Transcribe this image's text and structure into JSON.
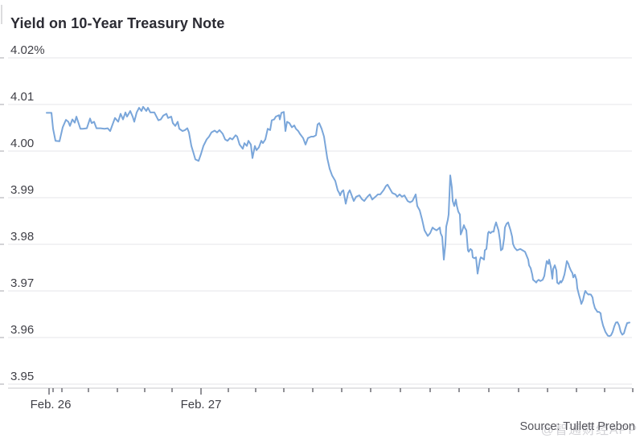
{
  "page": {
    "title": "Yield on 10-Year Treasury Note",
    "source": "Source: Tullett Prebon",
    "watermark": "@智通财经APP"
  },
  "colors": {
    "line": "#7aa6da",
    "grid": "#e6e6e8",
    "baseline": "#c9c9cc",
    "tick": "#4a4a52",
    "edge_tick": "#c4c4c8",
    "title": "#2b2b33",
    "label": "#3f3f46",
    "source": "#55555c",
    "watermark": "#d2d2d6"
  },
  "chart_data": {
    "type": "line",
    "title": "Yield on 10-Year Treasury Note",
    "unit": "%",
    "grid": true,
    "y_axis": {
      "range": [
        3.95,
        4.02
      ],
      "ticks": [
        {
          "label": "4.02%",
          "value": 4.02
        },
        {
          "label": "4.01",
          "value": 4.01
        },
        {
          "label": "4.00",
          "value": 4.0
        },
        {
          "label": "3.99",
          "value": 3.99
        },
        {
          "label": "3.98",
          "value": 3.98
        },
        {
          "label": "3.97",
          "value": 3.97
        },
        {
          "label": "3.96",
          "value": 3.96
        },
        {
          "label": "3.95",
          "value": 3.95
        }
      ]
    },
    "x_axis": {
      "labels": [
        {
          "text": "Feb. 26",
          "x": 63
        },
        {
          "text": "Feb. 27",
          "x": 250
        }
      ],
      "tick_positions": [
        61,
        66,
        77,
        110,
        146,
        180,
        214,
        250,
        284,
        318,
        353,
        389,
        425,
        461,
        498,
        535,
        571,
        608,
        645,
        681,
        717,
        752,
        787
      ],
      "major_tick_positions": [
        61,
        250
      ]
    },
    "series": [
      {
        "name": "Yield on 10-Year Treasury Note",
        "points": [
          [
            58,
            4.0082
          ],
          [
            64,
            4.0082
          ],
          [
            66,
            4.0048
          ],
          [
            69,
            4.0022
          ],
          [
            74,
            4.0021
          ],
          [
            78,
            4.0051
          ],
          [
            82,
            4.0067
          ],
          [
            85,
            4.0063
          ],
          [
            87,
            4.0054
          ],
          [
            90,
            4.0068
          ],
          [
            93,
            4.0061
          ],
          [
            95,
            4.0074
          ],
          [
            100,
            4.0048
          ],
          [
            103,
            4.0048
          ],
          [
            108,
            4.0049
          ],
          [
            112,
            4.007
          ],
          [
            114,
            4.006
          ],
          [
            117,
            4.0063
          ],
          [
            120,
            4.0049
          ],
          [
            125,
            4.0049
          ],
          [
            130,
            4.0048
          ],
          [
            134,
            4.0049
          ],
          [
            137,
            4.0043
          ],
          [
            140,
            4.0057
          ],
          [
            143,
            4.0071
          ],
          [
            147,
            4.0063
          ],
          [
            150,
            4.008
          ],
          [
            153,
            4.0068
          ],
          [
            156,
            4.0083
          ],
          [
            158,
            4.0074
          ],
          [
            162,
            4.0086
          ],
          [
            165,
            4.0074
          ],
          [
            167,
            4.0063
          ],
          [
            170,
            4.0083
          ],
          [
            173,
            4.0093
          ],
          [
            176,
            4.0086
          ],
          [
            178,
            4.0095
          ],
          [
            182,
            4.0086
          ],
          [
            184,
            4.0093
          ],
          [
            187,
            4.0083
          ],
          [
            192,
            4.0083
          ],
          [
            197,
            4.0066
          ],
          [
            200,
            4.0068
          ],
          [
            203,
            4.0076
          ],
          [
            207,
            4.008
          ],
          [
            209,
            4.0071
          ],
          [
            213,
            4.0074
          ],
          [
            215,
            4.006
          ],
          [
            218,
            4.0054
          ],
          [
            221,
            4.0063
          ],
          [
            223,
            4.0048
          ],
          [
            227,
            4.0043
          ],
          [
            230,
            4.0045
          ],
          [
            233,
            4.0049
          ],
          [
            235,
            4.004
          ],
          [
            238,
            4.0011
          ],
          [
            241,
            3.9994
          ],
          [
            243,
            3.9982
          ],
          [
            247,
            3.9979
          ],
          [
            250,
            3.9994
          ],
          [
            253,
            4.0011
          ],
          [
            257,
            4.0025
          ],
          [
            260,
            4.0031
          ],
          [
            263,
            4.004
          ],
          [
            267,
            4.0044
          ],
          [
            270,
            4.004
          ],
          [
            273,
            4.0045
          ],
          [
            277,
            4.0037
          ],
          [
            280,
            4.0025
          ],
          [
            283,
            4.0022
          ],
          [
            286,
            4.0028
          ],
          [
            289,
            4.0025
          ],
          [
            293,
            4.0034
          ],
          [
            295,
            4.0031
          ],
          [
            298,
            4.0014
          ],
          [
            302,
            4.0005
          ],
          [
            304,
            4.0017
          ],
          [
            307,
            4.0011
          ],
          [
            309,
            4.0022
          ],
          [
            312,
            4.0014
          ],
          [
            314,
            3.9985
          ],
          [
            317,
            4.0011
          ],
          [
            319,
            4.0002
          ],
          [
            322,
            4.0008
          ],
          [
            325,
            4.0022
          ],
          [
            327,
            4.0017
          ],
          [
            330,
            4.0025
          ],
          [
            333,
            4.0048
          ],
          [
            336,
            4.0045
          ],
          [
            338,
            4.0066
          ],
          [
            341,
            4.0068
          ],
          [
            343,
            4.0074
          ],
          [
            347,
            4.0077
          ],
          [
            348,
            4.0068
          ],
          [
            350,
            4.0082
          ],
          [
            353,
            4.0084
          ],
          [
            355,
            4.0043
          ],
          [
            357,
            4.0063
          ],
          [
            360,
            4.006
          ],
          [
            363,
            4.0051
          ],
          [
            366,
            4.0055
          ],
          [
            368,
            4.0048
          ],
          [
            371,
            4.0043
          ],
          [
            373,
            4.0037
          ],
          [
            377,
            4.0028
          ],
          [
            380,
            4.0014
          ],
          [
            383,
            4.0028
          ],
          [
            387,
            4.0031
          ],
          [
            390,
            4.0031
          ],
          [
            393,
            4.0034
          ],
          [
            395,
            4.0057
          ],
          [
            397,
            4.006
          ],
          [
            400,
            4.0048
          ],
          [
            403,
            4.0031
          ],
          [
            407,
            3.9985
          ],
          [
            410,
            3.9962
          ],
          [
            413,
            3.9948
          ],
          [
            417,
            3.9936
          ],
          [
            420,
            3.9916
          ],
          [
            422,
            3.991
          ],
          [
            423,
            3.9905
          ],
          [
            425,
            3.9913
          ],
          [
            427,
            3.9916
          ],
          [
            430,
            3.9887
          ],
          [
            433,
            3.991
          ],
          [
            435,
            3.9916
          ],
          [
            440,
            3.9893
          ],
          [
            443,
            3.9902
          ],
          [
            447,
            3.9905
          ],
          [
            450,
            3.9897
          ],
          [
            453,
            3.9893
          ],
          [
            457,
            3.9902
          ],
          [
            460,
            3.9907
          ],
          [
            463,
            3.9896
          ],
          [
            467,
            3.9902
          ],
          [
            470,
            3.9907
          ],
          [
            473,
            3.9907
          ],
          [
            477,
            3.9916
          ],
          [
            480,
            3.9925
          ],
          [
            482,
            3.9928
          ],
          [
            485,
            3.9919
          ],
          [
            488,
            3.991
          ],
          [
            492,
            3.9907
          ],
          [
            494,
            3.9902
          ],
          [
            497,
            3.9907
          ],
          [
            500,
            3.9902
          ],
          [
            503,
            3.9905
          ],
          [
            507,
            3.9893
          ],
          [
            510,
            3.989
          ],
          [
            513,
            3.9893
          ],
          [
            517,
            3.9907
          ],
          [
            519,
            3.9882
          ],
          [
            522,
            3.9873
          ],
          [
            525,
            3.9853
          ],
          [
            528,
            3.983
          ],
          [
            532,
            3.9818
          ],
          [
            535,
            3.9824
          ],
          [
            538,
            3.9836
          ],
          [
            540,
            3.9833
          ],
          [
            543,
            3.983
          ],
          [
            547,
            3.9836
          ],
          [
            548,
            3.9824
          ],
          [
            550,
            3.9816
          ],
          [
            552,
            3.9767
          ],
          [
            554,
            3.9801
          ],
          [
            555,
            3.9838
          ],
          [
            557,
            3.9853
          ],
          [
            558,
            3.9864
          ],
          [
            560,
            3.9948
          ],
          [
            562,
            3.9922
          ],
          [
            563,
            3.9893
          ],
          [
            565,
            3.9882
          ],
          [
            567,
            3.9896
          ],
          [
            568,
            3.9884
          ],
          [
            570,
            3.987
          ],
          [
            572,
            3.9864
          ],
          [
            573,
            3.9821
          ],
          [
            575,
            3.983
          ],
          [
            577,
            3.9841
          ],
          [
            578,
            3.9836
          ],
          [
            580,
            3.983
          ],
          [
            582,
            3.9787
          ],
          [
            583,
            3.9784
          ],
          [
            585,
            3.979
          ],
          [
            587,
            3.9787
          ],
          [
            588,
            3.9772
          ],
          [
            590,
            3.977
          ],
          [
            592,
            3.9772
          ],
          [
            594,
            3.9737
          ],
          [
            597,
            3.9767
          ],
          [
            598,
            3.9772
          ],
          [
            600,
            3.977
          ],
          [
            602,
            3.9767
          ],
          [
            603,
            3.9787
          ],
          [
            605,
            3.979
          ],
          [
            607,
            3.9824
          ],
          [
            608,
            3.9827
          ],
          [
            610,
            3.9824
          ],
          [
            612,
            3.9827
          ],
          [
            614,
            3.9827
          ],
          [
            615,
            3.9836
          ],
          [
            617,
            3.9847
          ],
          [
            618,
            3.9841
          ],
          [
            620,
            3.983
          ],
          [
            622,
            3.9807
          ],
          [
            623,
            3.9787
          ],
          [
            625,
            3.979
          ],
          [
            627,
            3.9813
          ],
          [
            628,
            3.9836
          ],
          [
            630,
            3.9844
          ],
          [
            632,
            3.9847
          ],
          [
            633,
            3.9841
          ],
          [
            635,
            3.983
          ],
          [
            637,
            3.9816
          ],
          [
            638,
            3.9801
          ],
          [
            640,
            3.9793
          ],
          [
            643,
            3.9787
          ],
          [
            647,
            3.979
          ],
          [
            650,
            3.9787
          ],
          [
            653,
            3.9784
          ],
          [
            657,
            3.9767
          ],
          [
            658,
            3.9755
          ],
          [
            660,
            3.9749
          ],
          [
            662,
            3.9735
          ],
          [
            663,
            3.9724
          ],
          [
            665,
            3.9721
          ],
          [
            667,
            3.9718
          ],
          [
            668,
            3.9721
          ],
          [
            670,
            3.9724
          ],
          [
            672,
            3.9721
          ],
          [
            673,
            3.9722
          ],
          [
            675,
            3.9724
          ],
          [
            677,
            3.9732
          ],
          [
            678,
            3.9744
          ],
          [
            680,
            3.9764
          ],
          [
            682,
            3.9758
          ],
          [
            683,
            3.9767
          ],
          [
            685,
            3.9752
          ],
          [
            687,
            3.9726
          ],
          [
            688,
            3.9747
          ],
          [
            690,
            3.9755
          ],
          [
            692,
            3.9744
          ],
          [
            693,
            3.9718
          ],
          [
            695,
            3.9715
          ],
          [
            697,
            3.9721
          ],
          [
            698,
            3.9718
          ],
          [
            700,
            3.9724
          ],
          [
            702,
            3.9735
          ],
          [
            703,
            3.9744
          ],
          [
            705,
            3.9764
          ],
          [
            707,
            3.9758
          ],
          [
            708,
            3.9752
          ],
          [
            710,
            3.9744
          ],
          [
            712,
            3.9738
          ],
          [
            713,
            3.9729
          ],
          [
            715,
            3.9735
          ],
          [
            717,
            3.9724
          ],
          [
            718,
            3.9706
          ],
          [
            720,
            3.9692
          ],
          [
            722,
            3.968
          ],
          [
            723,
            3.9672
          ],
          [
            725,
            3.968
          ],
          [
            727,
            3.9695
          ],
          [
            728,
            3.97
          ],
          [
            730,
            3.9695
          ],
          [
            732,
            3.9692
          ],
          [
            733,
            3.9693
          ],
          [
            735,
            3.9692
          ],
          [
            737,
            3.9686
          ],
          [
            738,
            3.9675
          ],
          [
            740,
            3.9663
          ],
          [
            742,
            3.9658
          ],
          [
            743,
            3.9655
          ],
          [
            745,
            3.9655
          ],
          [
            747,
            3.9652
          ],
          [
            748,
            3.964
          ],
          [
            750,
            3.9626
          ],
          [
            753,
            3.9612
          ],
          [
            756,
            3.9604
          ],
          [
            758,
            3.9603
          ],
          [
            760,
            3.9605
          ],
          [
            762,
            3.9612
          ],
          [
            764,
            3.9624
          ],
          [
            766,
            3.9632
          ],
          [
            768,
            3.9633
          ],
          [
            770,
            3.9626
          ],
          [
            772,
            3.9612
          ],
          [
            774,
            3.9606
          ],
          [
            776,
            3.9609
          ],
          [
            778,
            3.9621
          ],
          [
            780,
            3.9631
          ],
          [
            783,
            3.9632
          ]
        ]
      }
    ]
  }
}
